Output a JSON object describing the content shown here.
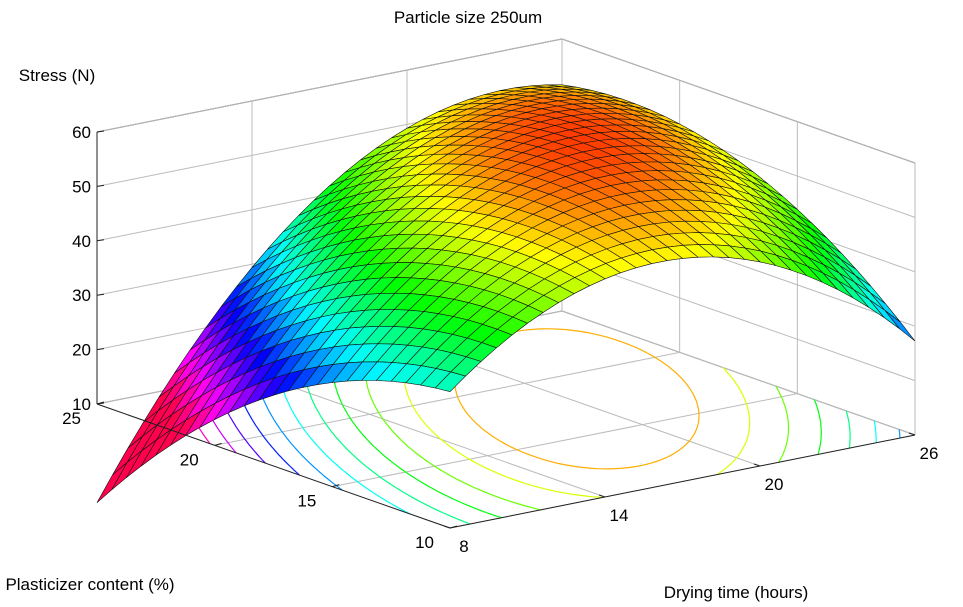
{
  "chart_data": {
    "type": "surface",
    "title": "Particle size 250um",
    "zlabel": "Stress (N)",
    "xlabel": "Drying time (hours)",
    "ylabel": "Plasticizer content (%)",
    "x_range": [
      8,
      26
    ],
    "y_range": [
      10,
      25
    ],
    "z_range": [
      10,
      60
    ],
    "x_ticks": [
      8,
      14,
      20,
      26
    ],
    "y_ticks": [
      10,
      15,
      20,
      25
    ],
    "z_ticks": [
      10,
      20,
      30,
      40,
      50,
      60
    ],
    "grid": true,
    "colormap": "hsv",
    "contour_projection": "floor",
    "grid_size": [
      30,
      24
    ],
    "surface_samples": [
      {
        "x": 8,
        "y": 10,
        "z": 10
      },
      {
        "x": 8,
        "y": 25,
        "z": 13
      },
      {
        "x": 14,
        "y": 20,
        "z": 47
      },
      {
        "x": 20,
        "y": 18,
        "z": 59
      },
      {
        "x": 26,
        "y": 10,
        "z": 36
      },
      {
        "x": 26,
        "y": 25,
        "z": 30
      }
    ]
  }
}
